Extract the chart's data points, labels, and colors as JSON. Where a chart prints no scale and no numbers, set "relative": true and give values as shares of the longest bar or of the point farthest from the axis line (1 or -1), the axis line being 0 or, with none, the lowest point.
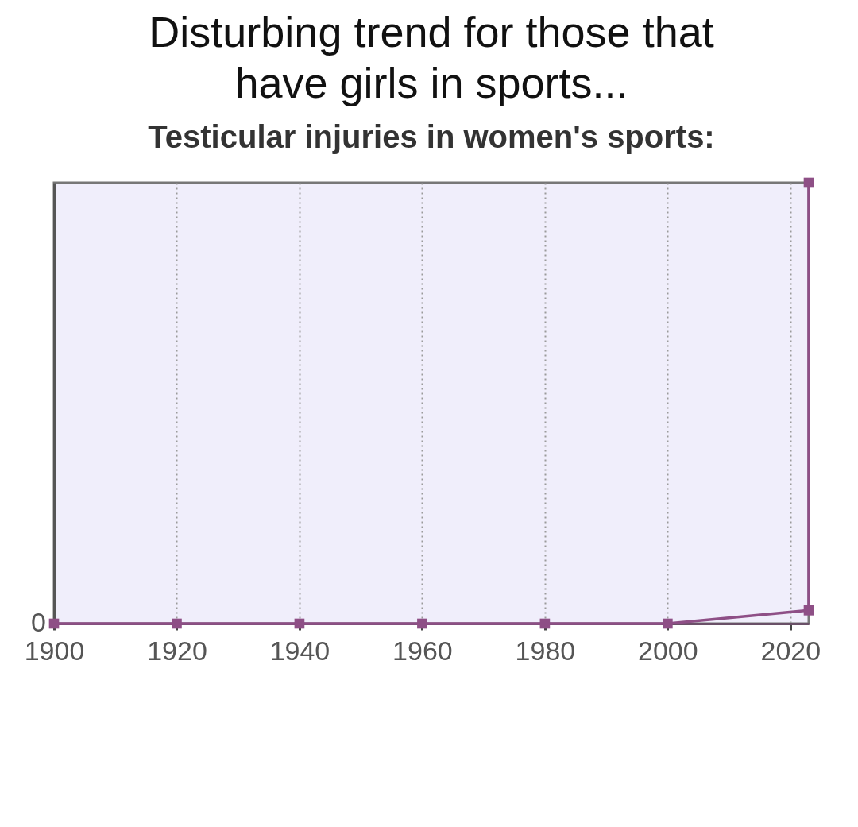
{
  "chart_data": {
    "type": "line",
    "title": "Disturbing trend for those that have girls in sports...",
    "subtitle": "Testicular injuries in women's sports:",
    "relative": true,
    "x": [
      1900,
      1920,
      1940,
      1960,
      1980,
      2000,
      2023,
      2023
    ],
    "series": [
      {
        "color": "#8e4f86",
        "values": [
          0,
          0,
          0,
          0,
          0,
          0,
          0.03,
          1
        ]
      }
    ],
    "xlim": [
      1900,
      2023
    ],
    "xticks": [
      1900,
      1920,
      1940,
      1960,
      1980,
      2000,
      2020
    ],
    "annotations": [
      {
        "text": "0",
        "x": 1900,
        "y": 0
      }
    ],
    "grid": "x",
    "marker": "square",
    "line_style": "solid"
  }
}
